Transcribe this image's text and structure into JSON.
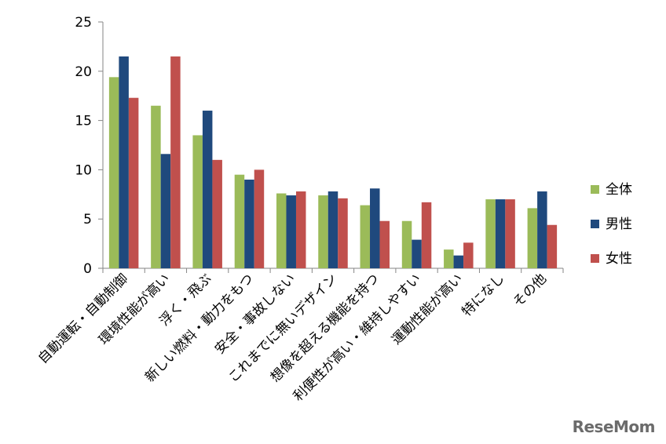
{
  "chart_data": {
    "type": "bar",
    "title": "",
    "xlabel": "",
    "ylabel": "",
    "ylim": [
      0,
      25
    ],
    "yticks": [
      0,
      5,
      10,
      15,
      20,
      25
    ],
    "grid": false,
    "legend_position": "right",
    "categories": [
      "自動運転・自動制御",
      "環境性能が高い",
      "浮く・飛ぶ",
      "新しい燃料・動力をもつ",
      "安全・事故しない",
      "これまでに無いデザイン",
      "想像を超える機能を持つ",
      "利便性が高い・維持しやすい",
      "運動性能が高い",
      "特になし",
      "その他"
    ],
    "series": [
      {
        "name": "全体",
        "color": "#9bbb59",
        "values": [
          19.4,
          16.5,
          13.5,
          9.5,
          7.6,
          7.4,
          6.4,
          4.8,
          1.9,
          7.0,
          6.1
        ]
      },
      {
        "name": "男性",
        "color": "#1f497d",
        "values": [
          21.5,
          11.6,
          16.0,
          9.0,
          7.4,
          7.8,
          8.1,
          2.9,
          1.3,
          7.0,
          7.8
        ]
      },
      {
        "name": "女性",
        "color": "#c0504d",
        "values": [
          17.3,
          21.5,
          11.0,
          10.0,
          7.8,
          7.1,
          4.8,
          6.7,
          2.6,
          7.0,
          4.4
        ]
      }
    ]
  },
  "watermark": "ReseMom"
}
